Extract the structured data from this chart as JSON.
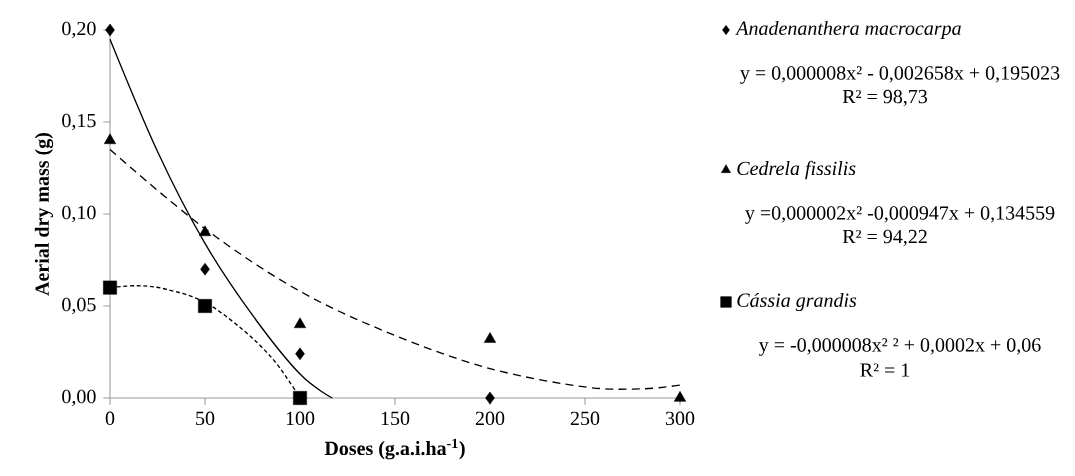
{
  "chart_data": {
    "type": "scatter",
    "xlabel": "Doses (g.a.i.ha$^{-1}$)",
    "ylabel": "Aerial dry mass  (g)",
    "xlim": [
      0,
      300
    ],
    "ylim": [
      0,
      0.2
    ],
    "xticks": [
      0,
      50,
      100,
      150,
      200,
      250,
      300
    ],
    "yticks": [
      {
        "value": 0,
        "label": "0,00"
      },
      {
        "value": 0.05,
        "label": "0,05"
      },
      {
        "value": 0.1,
        "label": "0,10"
      },
      {
        "value": 0.15,
        "label": "0,15"
      },
      {
        "value": 0.2,
        "label": "0,20"
      }
    ],
    "legend": "right",
    "series": [
      {
        "name": "Anadenanthera macrocarpa",
        "marker": "diamond",
        "color": "#000000",
        "x": [
          0,
          50,
          100,
          200
        ],
        "values": [
          0.2,
          0.07,
          0.024,
          0.0
        ]
      },
      {
        "name": "Cedrela fissilis",
        "marker": "triangle",
        "color": "#000000",
        "x": [
          0,
          50,
          100,
          200,
          300
        ],
        "values": [
          0.14,
          0.09,
          0.04,
          0.032,
          0.0
        ]
      },
      {
        "name": "Cássia grandis",
        "marker": "square",
        "color": "#000000",
        "x": [
          0,
          50,
          100
        ],
        "values": [
          0.06,
          0.05,
          0.0
        ]
      },
      {
        "type": "line",
        "line_style": "solid",
        "color": "#000000",
        "x": [
          0,
          25,
          50,
          75,
          100,
          117
        ],
        "values": [
          0.195,
          0.134,
          0.084,
          0.045,
          0.013,
          0.0
        ]
      },
      {
        "type": "line",
        "line_style": "dashed",
        "color": "#000000",
        "x": [
          0,
          50,
          100,
          150,
          200,
          250,
          280,
          300
        ],
        "values": [
          0.135,
          0.092,
          0.058,
          0.034,
          0.016,
          0.006,
          0.005,
          0.007
        ]
      },
      {
        "type": "line",
        "line_style": "dotted",
        "color": "#000000",
        "x": [
          0,
          15,
          30,
          50,
          70,
          85,
          95,
          100
        ],
        "values": [
          0.06,
          0.061,
          0.059,
          0.052,
          0.037,
          0.022,
          0.008,
          0.0
        ]
      }
    ],
    "annotations": [
      "y = 0,000008x²  - 0,002658x + 0,195023",
      "R² = 98,73",
      "y =0,000002x² -0,000947x + 0,134559",
      "R² = 94,22",
      "y = -0,000008x² ² + 0,0002x + 0,06",
      "R² = 1"
    ]
  }
}
